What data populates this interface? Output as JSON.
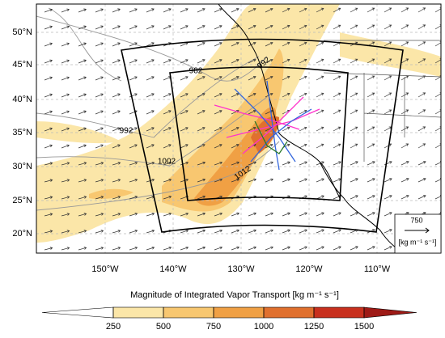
{
  "map": {
    "lat_labels": [
      "50°N",
      "45°N",
      "40°N",
      "35°N",
      "30°N",
      "25°N",
      "20°N"
    ],
    "lon_labels": [
      "150°W",
      "140°W",
      "130°W",
      "120°W",
      "110°W"
    ],
    "contour_labels": [
      982,
      992,
      992,
      1002,
      1012
    ],
    "reference_vector": {
      "value": 750,
      "units": "[kg m⁻¹ s⁻¹]"
    }
  },
  "colorbar": {
    "title": "Magnitude of Integrated Vapor Transport  [kg m⁻¹ s⁻¹]",
    "ticks": [
      250,
      500,
      750,
      1000,
      1250,
      1500
    ],
    "colors": [
      "#ffffff",
      "#fbe6a8",
      "#f8c770",
      "#f0a044",
      "#e0702e",
      "#c8301e",
      "#9e1a16"
    ]
  }
}
